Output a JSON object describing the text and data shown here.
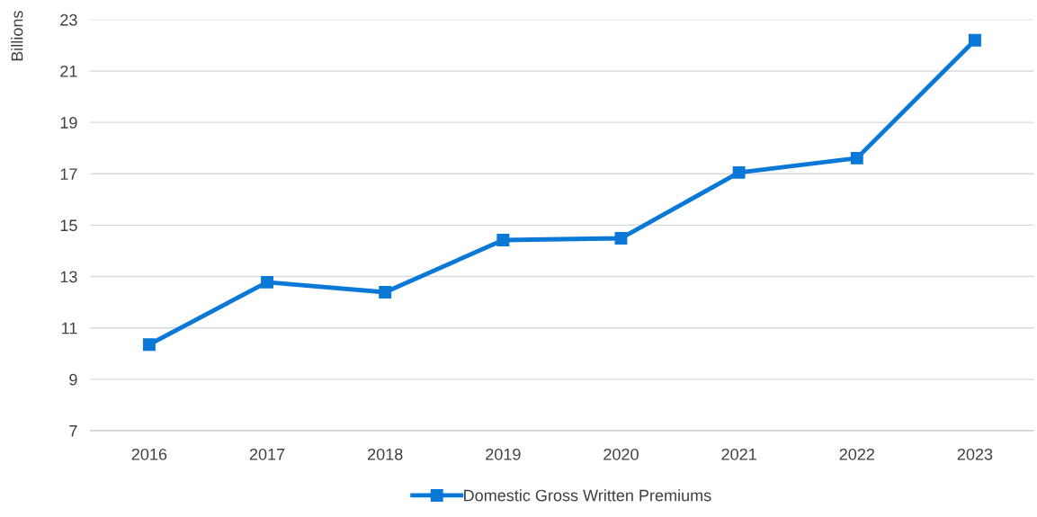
{
  "chart_data": {
    "type": "line",
    "ylabel": "Billions",
    "categories": [
      "2016",
      "2017",
      "2018",
      "2019",
      "2020",
      "2021",
      "2022",
      "2023"
    ],
    "series": [
      {
        "name": "Domestic Gross Written Premiums",
        "color": "#0a78d6",
        "values": [
          10.35,
          12.78,
          12.39,
          14.42,
          14.49,
          17.05,
          17.61,
          22.2
        ]
      }
    ],
    "ylim": [
      7,
      23
    ],
    "yticks": [
      7,
      9,
      11,
      13,
      15,
      17,
      19,
      21,
      23
    ],
    "grid": "y",
    "legend": "bottom",
    "marker": "square",
    "line_style": "solid"
  }
}
